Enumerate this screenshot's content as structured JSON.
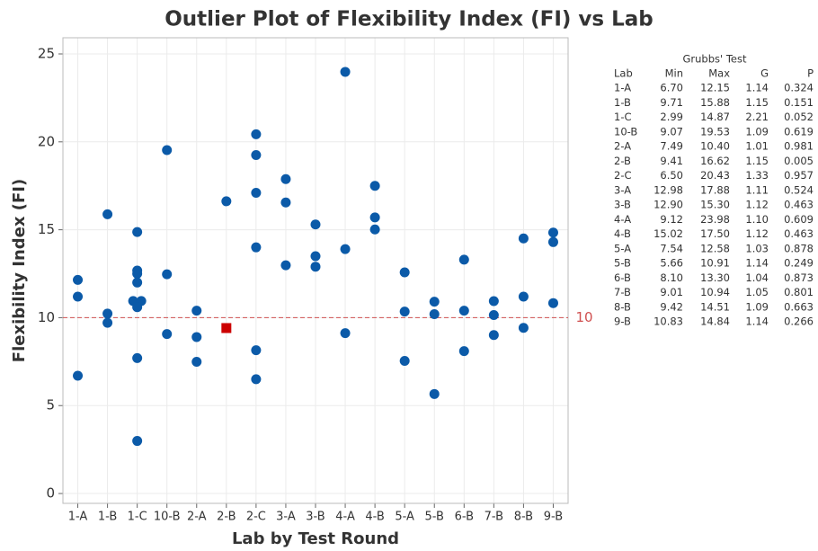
{
  "chart_data": {
    "type": "scatter",
    "title": "Outlier Plot of Flexibility Index (FI) vs Lab",
    "x_label": "Lab by Test Round",
    "y_label": "Flexibility Index (FI)",
    "categories": [
      "1-A",
      "1-B",
      "1-C",
      "10-B",
      "2-A",
      "2-B",
      "2-C",
      "3-A",
      "3-B",
      "4-A",
      "4-B",
      "5-A",
      "5-B",
      "6-B",
      "7-B",
      "8-B",
      "9-B"
    ],
    "ylim": [
      -0.56,
      25.92
    ],
    "yticks": [
      0,
      5,
      10,
      15,
      20,
      25
    ],
    "grid": true,
    "points": {
      "color": "#0b5aa8",
      "x": [
        "1-A",
        "1-A",
        "1-A",
        "1-B",
        "1-B",
        "1-B",
        "1-C",
        "1-C",
        "1-C",
        "1-C",
        "1-C",
        "1-C",
        "1-C",
        "1-C",
        "1-C",
        "10-B",
        "10-B",
        "10-B",
        "2-A",
        "2-A",
        "2-A",
        "2-B",
        "2-C",
        "2-C",
        "2-C",
        "2-C",
        "2-C",
        "2-C",
        "3-A",
        "3-A",
        "3-A",
        "3-B",
        "3-B",
        "3-B",
        "4-A",
        "4-A",
        "4-A",
        "4-B",
        "4-B",
        "4-B",
        "5-A",
        "5-A",
        "5-A",
        "5-B",
        "5-B",
        "5-B",
        "6-B",
        "6-B",
        "6-B",
        "7-B",
        "7-B",
        "7-B",
        "8-B",
        "8-B",
        "8-B",
        "9-B",
        "9-B",
        "9-B"
      ],
      "values": [
        12.15,
        11.2,
        6.7,
        15.88,
        10.23,
        9.71,
        14.87,
        12.68,
        12.5,
        12.0,
        10.95,
        10.95,
        10.6,
        7.7,
        2.99,
        19.53,
        12.47,
        9.07,
        10.4,
        8.9,
        7.49,
        16.62,
        20.43,
        19.25,
        17.1,
        14.0,
        8.15,
        6.5,
        17.88,
        16.55,
        12.98,
        15.3,
        13.5,
        12.9,
        23.98,
        13.9,
        9.12,
        17.5,
        15.7,
        15.02,
        12.58,
        10.35,
        7.54,
        10.91,
        10.2,
        5.66,
        13.3,
        10.4,
        8.1,
        10.94,
        10.15,
        9.01,
        14.51,
        11.2,
        9.42,
        14.84,
        14.3,
        10.83
      ]
    },
    "outliers": {
      "color": "#cc0000",
      "x": [
        "2-B"
      ],
      "values": [
        9.41
      ]
    },
    "reference_line": 10,
    "reference_color": "#d05050",
    "table": {
      "title": "Grubbs' Test",
      "columns": [
        "Lab",
        "Min",
        "Max",
        "G",
        "P"
      ],
      "rows": [
        [
          "1-A",
          "6.70",
          "12.15",
          "1.14",
          "0.324"
        ],
        [
          "1-B",
          "9.71",
          "15.88",
          "1.15",
          "0.151"
        ],
        [
          "1-C",
          "2.99",
          "14.87",
          "2.21",
          "0.052"
        ],
        [
          "10-B",
          "9.07",
          "19.53",
          "1.09",
          "0.619"
        ],
        [
          "2-A",
          "7.49",
          "10.40",
          "1.01",
          "0.981"
        ],
        [
          "2-B",
          "9.41",
          "16.62",
          "1.15",
          "0.005"
        ],
        [
          "2-C",
          "6.50",
          "20.43",
          "1.33",
          "0.957"
        ],
        [
          "3-A",
          "12.98",
          "17.88",
          "1.11",
          "0.524"
        ],
        [
          "3-B",
          "12.90",
          "15.30",
          "1.12",
          "0.463"
        ],
        [
          "4-A",
          "9.12",
          "23.98",
          "1.10",
          "0.609"
        ],
        [
          "4-B",
          "15.02",
          "17.50",
          "1.12",
          "0.463"
        ],
        [
          "5-A",
          "7.54",
          "12.58",
          "1.03",
          "0.878"
        ],
        [
          "5-B",
          "5.66",
          "10.91",
          "1.14",
          "0.249"
        ],
        [
          "6-B",
          "8.10",
          "13.30",
          "1.04",
          "0.873"
        ],
        [
          "7-B",
          "9.01",
          "10.94",
          "1.05",
          "0.801"
        ],
        [
          "8-B",
          "9.42",
          "14.51",
          "1.09",
          "0.663"
        ],
        [
          "9-B",
          "10.83",
          "14.84",
          "1.14",
          "0.266"
        ]
      ]
    }
  }
}
